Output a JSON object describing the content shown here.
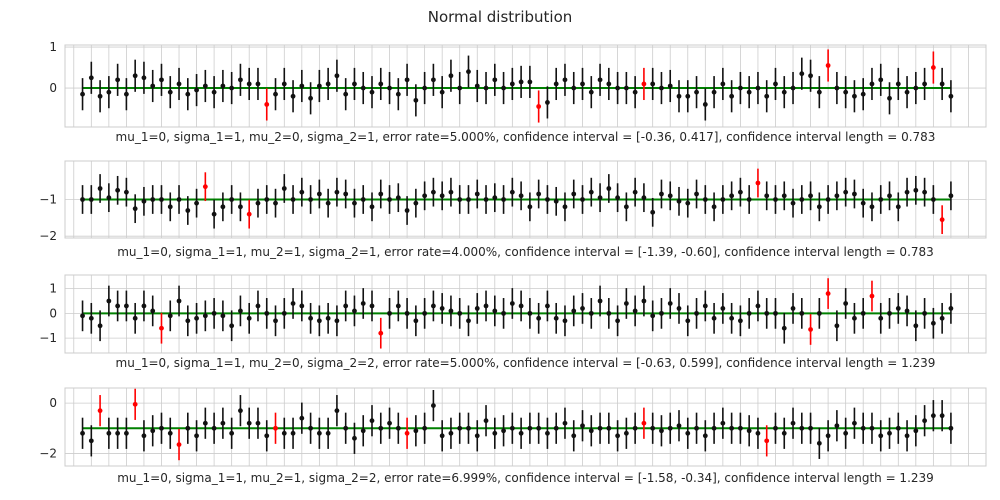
{
  "title": "Normal distribution",
  "colors": {
    "ok": "#111111",
    "miss": "#ff0000",
    "truth": "#008000",
    "grid": "#cccccc",
    "frame": "#cccccc"
  },
  "chart_data": [
    {
      "type": "scatter",
      "title": "",
      "xlabel": "mu_1=0, sigma_1=1, mu_2=0, sigma_2=1, error rate=5.000%, confidence interval = [-0.36, 0.417], confidence interval length = 0.783",
      "ylabel": "",
      "true_value": 0,
      "half_width": 0.392,
      "ylim": [
        -0.95,
        1.05
      ],
      "yticks": [
        0,
        1
      ],
      "x": [
        1,
        2,
        3,
        4,
        5,
        6,
        7,
        8,
        9,
        10,
        11,
        12,
        13,
        14,
        15,
        16,
        17,
        18,
        19,
        20,
        21,
        22,
        23,
        24,
        25,
        26,
        27,
        28,
        29,
        30,
        31,
        32,
        33,
        34,
        35,
        36,
        37,
        38,
        39,
        40,
        41,
        42,
        43,
        44,
        45,
        46,
        47,
        48,
        49,
        50,
        51,
        52,
        53,
        54,
        55,
        56,
        57,
        58,
        59,
        60,
        61,
        62,
        63,
        64,
        65,
        66,
        67,
        68,
        69,
        70,
        71,
        72,
        73,
        74,
        75,
        76,
        77,
        78,
        79,
        80,
        81,
        82,
        83,
        84,
        85,
        86,
        87,
        88,
        89,
        90,
        91,
        92,
        93,
        94,
        95,
        96,
        97,
        98,
        99,
        100
      ],
      "estimates": [
        -0.15,
        0.25,
        -0.2,
        -0.1,
        0.2,
        -0.15,
        0.3,
        0.25,
        0.05,
        0.2,
        -0.1,
        0.1,
        -0.15,
        -0.05,
        0.05,
        -0.1,
        0.05,
        0.0,
        0.2,
        0.1,
        0.1,
        -0.4,
        -0.15,
        0.1,
        -0.2,
        0.05,
        -0.25,
        0.05,
        0.1,
        0.3,
        -0.15,
        0.1,
        0.0,
        -0.1,
        0.1,
        0.0,
        -0.15,
        0.2,
        -0.3,
        0.0,
        0.2,
        -0.1,
        0.3,
        0.0,
        0.4,
        0.05,
        0.0,
        0.2,
        0.0,
        0.1,
        0.15,
        0.15,
        -0.45,
        -0.35,
        0.1,
        0.2,
        0.0,
        0.1,
        -0.1,
        0.2,
        0.1,
        0.0,
        0.0,
        -0.1,
        0.1,
        0.1,
        0.0,
        0.05,
        -0.2,
        -0.2,
        -0.1,
        -0.4,
        -0.1,
        0.1,
        -0.2,
        0.0,
        -0.1,
        0.0,
        -0.2,
        0.1,
        -0.1,
        0.0,
        0.35,
        0.3,
        -0.1,
        0.55,
        0.0,
        -0.1,
        -0.2,
        -0.15,
        0.1,
        0.2,
        -0.25,
        0.1,
        -0.1,
        0.0,
        0.1,
        0.5,
        0.1,
        -0.2
      ],
      "misses": [
        22,
        53,
        65,
        86,
        98
      ]
    },
    {
      "type": "scatter",
      "title": "",
      "xlabel": "mu_1=0, sigma_1=1, mu_2=1, sigma_2=1, error rate=4.000%, confidence interval = [-1.39, -0.60], confidence interval length = 0.783",
      "ylabel": "",
      "true_value": -1,
      "half_width": 0.392,
      "ylim": [
        -2.05,
        0.05
      ],
      "yticks": [
        -2,
        -1
      ],
      "x": [
        1,
        2,
        3,
        4,
        5,
        6,
        7,
        8,
        9,
        10,
        11,
        12,
        13,
        14,
        15,
        16,
        17,
        18,
        19,
        20,
        21,
        22,
        23,
        24,
        25,
        26,
        27,
        28,
        29,
        30,
        31,
        32,
        33,
        34,
        35,
        36,
        37,
        38,
        39,
        40,
        41,
        42,
        43,
        44,
        45,
        46,
        47,
        48,
        49,
        50,
        51,
        52,
        53,
        54,
        55,
        56,
        57,
        58,
        59,
        60,
        61,
        62,
        63,
        64,
        65,
        66,
        67,
        68,
        69,
        70,
        71,
        72,
        73,
        74,
        75,
        76,
        77,
        78,
        79,
        80,
        81,
        82,
        83,
        84,
        85,
        86,
        87,
        88,
        89,
        90,
        91,
        92,
        93,
        94,
        95,
        96,
        97,
        98,
        99,
        100
      ],
      "estimates": [
        -1.0,
        -1.0,
        -0.7,
        -0.95,
        -0.75,
        -0.8,
        -1.25,
        -1.05,
        -1.0,
        -1.0,
        -1.2,
        -1.0,
        -1.3,
        -1.1,
        -0.65,
        -1.4,
        -1.2,
        -1.0,
        -1.2,
        -1.4,
        -1.1,
        -1.0,
        -1.1,
        -0.7,
        -1.0,
        -0.8,
        -1.0,
        -0.85,
        -1.1,
        -0.8,
        -0.85,
        -1.1,
        -1.0,
        -1.2,
        -0.85,
        -1.0,
        -0.95,
        -1.3,
        -1.1,
        -0.9,
        -0.8,
        -0.9,
        -0.8,
        -1.0,
        -1.0,
        -0.85,
        -1.0,
        -0.95,
        -1.0,
        -0.8,
        -0.9,
        -1.2,
        -0.85,
        -1.0,
        -1.05,
        -1.2,
        -0.85,
        -1.0,
        -0.8,
        -0.95,
        -0.7,
        -0.95,
        -1.2,
        -0.8,
        -0.95,
        -1.35,
        -0.85,
        -0.9,
        -1.05,
        -1.1,
        -0.85,
        -1.0,
        -1.2,
        -1.0,
        -0.9,
        -0.8,
        -1.0,
        -0.55,
        -0.9,
        -1.0,
        -0.9,
        -1.1,
        -1.0,
        -0.9,
        -1.2,
        -1.0,
        -0.9,
        -0.8,
        -0.85,
        -1.1,
        -1.2,
        -1.0,
        -0.9,
        -1.2,
        -0.8,
        -0.75,
        -0.8,
        -1.0,
        -1.55,
        -0.9
      ],
      "misses": [
        15,
        20,
        78,
        99
      ]
    },
    {
      "type": "scatter",
      "title": "",
      "xlabel": "mu_1=0, sigma_1=1, mu_2=0, sigma_2=2, error rate=5.000%, confidence interval = [-0.63, 0.599], confidence interval length = 1.239",
      "ylabel": "",
      "true_value": 0,
      "half_width": 0.62,
      "ylim": [
        -1.6,
        1.55
      ],
      "yticks": [
        -1,
        0,
        1
      ],
      "x": [
        1,
        2,
        3,
        4,
        5,
        6,
        7,
        8,
        9,
        10,
        11,
        12,
        13,
        14,
        15,
        16,
        17,
        18,
        19,
        20,
        21,
        22,
        23,
        24,
        25,
        26,
        27,
        28,
        29,
        30,
        31,
        32,
        33,
        34,
        35,
        36,
        37,
        38,
        39,
        40,
        41,
        42,
        43,
        44,
        45,
        46,
        47,
        48,
        49,
        50,
        51,
        52,
        53,
        54,
        55,
        56,
        57,
        58,
        59,
        60,
        61,
        62,
        63,
        64,
        65,
        66,
        67,
        68,
        69,
        70,
        71,
        72,
        73,
        74,
        75,
        76,
        77,
        78,
        79,
        80,
        81,
        82,
        83,
        84,
        85,
        86,
        87,
        88,
        89,
        90,
        91,
        92,
        93,
        94,
        95,
        96,
        97,
        98,
        99,
        100
      ],
      "estimates": [
        -0.1,
        -0.2,
        -0.5,
        0.5,
        0.3,
        0.3,
        -0.2,
        0.3,
        0.1,
        -0.6,
        -0.1,
        0.5,
        -0.3,
        -0.2,
        -0.1,
        0.0,
        -0.1,
        -0.5,
        0.1,
        -0.2,
        0.3,
        0.0,
        -0.3,
        0.0,
        0.4,
        0.3,
        -0.2,
        -0.3,
        -0.2,
        -0.3,
        0.3,
        0.1,
        0.4,
        0.3,
        -0.8,
        0.0,
        0.3,
        0.0,
        -0.3,
        0.0,
        0.3,
        0.2,
        0.1,
        0.0,
        -0.3,
        0.2,
        0.3,
        0.1,
        0.0,
        0.4,
        0.3,
        0.0,
        -0.2,
        0.3,
        -0.2,
        -0.3,
        0.1,
        0.2,
        0.0,
        0.5,
        0.0,
        -0.3,
        0.4,
        0.1,
        0.5,
        -0.1,
        0.0,
        0.4,
        0.2,
        -0.3,
        0.0,
        0.3,
        -0.2,
        0.2,
        -0.2,
        -0.3,
        0.0,
        0.3,
        0.0,
        0.0,
        -0.6,
        0.2,
        0.0,
        -0.65,
        0.0,
        0.8,
        -0.5,
        0.4,
        -0.2,
        0.0,
        0.7,
        -0.2,
        0.0,
        0.2,
        0.1,
        -0.5,
        0.0,
        -0.4,
        -0.2,
        0.2
      ],
      "misses": [
        10,
        35,
        84,
        86,
        91
      ]
    },
    {
      "type": "scatter",
      "title": "",
      "xlabel": "mu_1=0, sigma_1=1, mu_2=1, sigma_2=2, error rate=6.999%, confidence interval = [-1.58, -0.34], confidence interval length = 1.239",
      "ylabel": "",
      "true_value": -1,
      "half_width": 0.62,
      "ylim": [
        -2.5,
        0.6
      ],
      "yticks": [
        -2,
        0
      ],
      "x": [
        1,
        2,
        3,
        4,
        5,
        6,
        7,
        8,
        9,
        10,
        11,
        12,
        13,
        14,
        15,
        16,
        17,
        18,
        19,
        20,
        21,
        22,
        23,
        24,
        25,
        26,
        27,
        28,
        29,
        30,
        31,
        32,
        33,
        34,
        35,
        36,
        37,
        38,
        39,
        40,
        41,
        42,
        43,
        44,
        45,
        46,
        47,
        48,
        49,
        50,
        51,
        52,
        53,
        54,
        55,
        56,
        57,
        58,
        59,
        60,
        61,
        62,
        63,
        64,
        65,
        66,
        67,
        68,
        69,
        70,
        71,
        72,
        73,
        74,
        75,
        76,
        77,
        78,
        79,
        80,
        81,
        82,
        83,
        84,
        85,
        86,
        87,
        88,
        89,
        90,
        91,
        92,
        93,
        94,
        95,
        96,
        97,
        98,
        99,
        100
      ],
      "estimates": [
        -1.2,
        -1.5,
        -0.3,
        -1.2,
        -1.2,
        -1.2,
        -0.05,
        -1.3,
        -1.1,
        -1.0,
        -1.2,
        -1.65,
        -1.0,
        -1.3,
        -0.8,
        -1.0,
        -0.8,
        -1.2,
        -0.3,
        -0.8,
        -0.8,
        -1.3,
        -1.0,
        -1.2,
        -1.2,
        -0.6,
        -1.0,
        -1.2,
        -1.2,
        -0.3,
        -1.0,
        -1.4,
        -1.1,
        -0.7,
        -1.0,
        -0.8,
        -1.0,
        -1.2,
        -1.1,
        -1.0,
        -0.1,
        -1.3,
        -1.2,
        -1.0,
        -1.0,
        -1.3,
        -0.7,
        -1.2,
        -1.1,
        -1.0,
        -1.2,
        -1.0,
        -1.0,
        -1.2,
        -1.0,
        -0.8,
        -1.3,
        -0.9,
        -1.1,
        -1.0,
        -1.0,
        -1.3,
        -1.2,
        -1.0,
        -0.8,
        -1.0,
        -1.1,
        -1.0,
        -0.9,
        -1.2,
        -1.0,
        -1.3,
        -1.0,
        -0.8,
        -1.0,
        -1.0,
        -1.1,
        -1.2,
        -1.5,
        -1.0,
        -1.2,
        -0.8,
        -1.0,
        -1.0,
        -1.6,
        -1.3,
        -0.9,
        -1.2,
        -0.8,
        -1.0,
        -1.0,
        -1.3,
        -1.2,
        -1.0,
        -1.3,
        -1.1,
        -0.7,
        -0.5,
        -0.5,
        -1.0
      ],
      "misses": [
        3,
        7,
        12,
        23,
        38,
        65,
        79
      ]
    }
  ]
}
